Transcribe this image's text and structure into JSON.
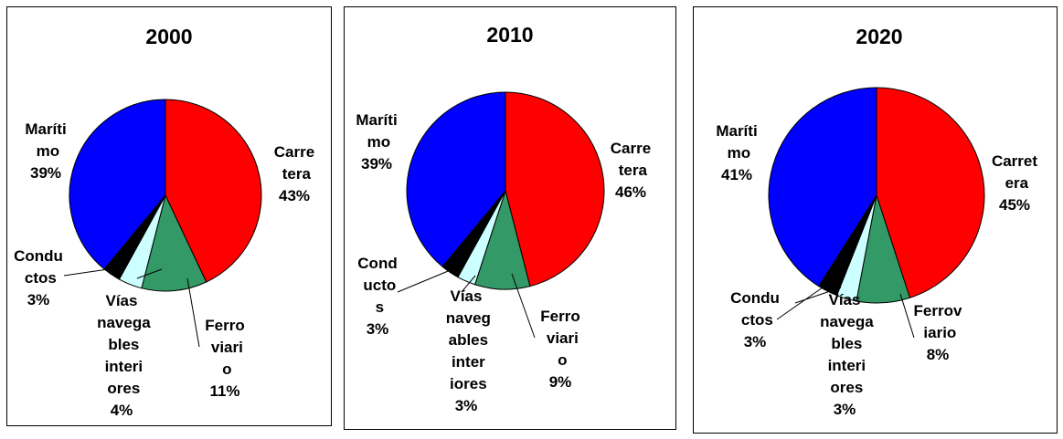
{
  "chart_data": [
    {
      "type": "pie",
      "title": "2000",
      "categories": [
        "Carretera",
        "Ferroviario",
        "Vías navegables interiores",
        "Conductos",
        "Marítimo"
      ],
      "values": [
        43,
        11,
        4,
        3,
        39
      ],
      "value_labels": [
        "43%",
        "11%",
        "4%",
        "3%",
        "39%"
      ],
      "colors": [
        "#ff0000",
        "#339966",
        "#ccffff",
        "#000000",
        "#0000ff"
      ]
    },
    {
      "type": "pie",
      "title": "2010",
      "categories": [
        "Carretera",
        "Ferroviario",
        "Vías navegables interiores",
        "Conductos",
        "Marítimo"
      ],
      "values": [
        46,
        9,
        3,
        3,
        39
      ],
      "value_labels": [
        "46%",
        "9%",
        "3%",
        "3%",
        "39%"
      ],
      "colors": [
        "#ff0000",
        "#339966",
        "#ccffff",
        "#000000",
        "#0000ff"
      ]
    },
    {
      "type": "pie",
      "title": "2020",
      "categories": [
        "Carretera",
        "Ferroviario",
        "Vías navegables interiores",
        "Conductos",
        "Marítimo"
      ],
      "values": [
        45,
        8,
        3,
        3,
        41
      ],
      "value_labels": [
        "45%",
        "8%",
        "3%",
        "3%",
        "41%"
      ],
      "colors": [
        "#ff0000",
        "#339966",
        "#ccffff",
        "#000000",
        "#0000ff"
      ]
    }
  ]
}
